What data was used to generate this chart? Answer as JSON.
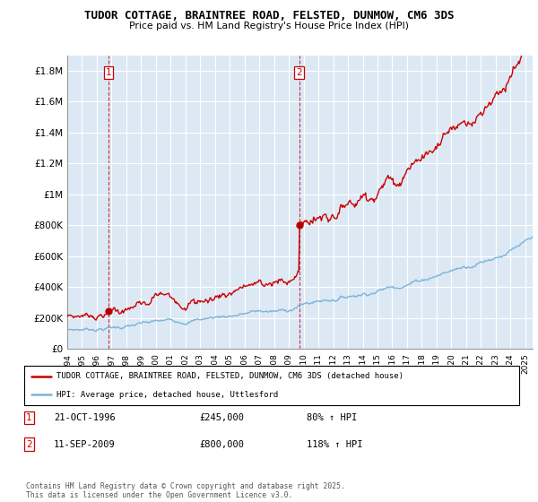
{
  "title": "TUDOR COTTAGE, BRAINTREE ROAD, FELSTED, DUNMOW, CM6 3DS",
  "subtitle": "Price paid vs. HM Land Registry's House Price Index (HPI)",
  "ylabel_ticks": [
    "£0",
    "£200K",
    "£400K",
    "£600K",
    "£800K",
    "£1M",
    "£1.2M",
    "£1.4M",
    "£1.6M",
    "£1.8M"
  ],
  "ylabel_values": [
    0,
    200000,
    400000,
    600000,
    800000,
    1000000,
    1200000,
    1400000,
    1600000,
    1800000
  ],
  "ylim": [
    0,
    1900000
  ],
  "xlim_start": 1994.0,
  "xlim_end": 2025.5,
  "purchase1_year": 1996.8,
  "purchase1_price": 245000,
  "purchase1_date": "21-OCT-1996",
  "purchase1_hpi": "80% ↑ HPI",
  "purchase2_year": 2009.7,
  "purchase2_price": 800000,
  "purchase2_date": "11-SEP-2009",
  "purchase2_hpi": "118% ↑ HPI",
  "hpi_color": "#7ab4d8",
  "price_color": "#cc0000",
  "vline_color": "#cc0000",
  "plot_bg_color": "#dce9f5",
  "background_color": "#ffffff",
  "grid_color": "#ffffff",
  "legend_label_red": "TUDOR COTTAGE, BRAINTREE ROAD, FELSTED, DUNMOW, CM6 3DS (detached house)",
  "legend_label_blue": "HPI: Average price, detached house, Uttlesford",
  "footer": "Contains HM Land Registry data © Crown copyright and database right 2025.\nThis data is licensed under the Open Government Licence v3.0.",
  "x_tick_years": [
    1994,
    1995,
    1996,
    1997,
    1998,
    1999,
    2000,
    2001,
    2002,
    2003,
    2004,
    2005,
    2006,
    2007,
    2008,
    2009,
    2010,
    2011,
    2012,
    2013,
    2014,
    2015,
    2016,
    2017,
    2018,
    2019,
    2020,
    2021,
    2022,
    2023,
    2024,
    2025
  ]
}
